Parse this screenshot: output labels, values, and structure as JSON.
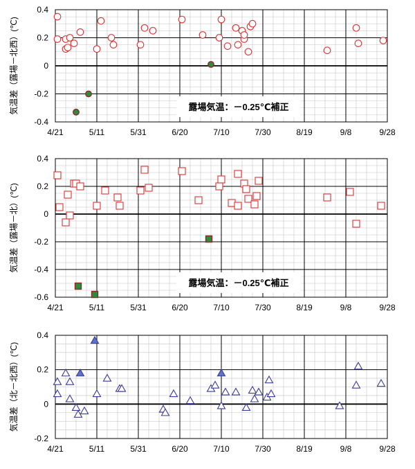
{
  "chart_data": [
    {
      "type": "scatter",
      "ylabel": "気温差（露場－北西）(℃)",
      "ylim": [
        -0.4,
        0.4
      ],
      "yticks": [
        -0.4,
        -0.2,
        0,
        0.2,
        0.4
      ],
      "xlim": [
        "4/21",
        "9/28"
      ],
      "xticks": [
        "4/21",
        "5/11",
        "5/31",
        "6/20",
        "7/10",
        "7/30",
        "8/19",
        "9/8",
        "9/28"
      ],
      "annotation": "露場気温：－0.25℃補正",
      "grid": true,
      "series": [
        {
          "marker": "circle-open",
          "color": "#e03030",
          "points": [
            [
              "4/22",
              0.35
            ],
            [
              "4/22",
              0.19
            ],
            [
              "4/26",
              0.12
            ],
            [
              "4/26",
              0.19
            ],
            [
              "4/27",
              0.13
            ],
            [
              "4/28",
              0.2
            ],
            [
              "4/30",
              0.16
            ],
            [
              "5/3",
              0.24
            ],
            [
              "5/11",
              0.12
            ],
            [
              "5/13",
              0.32
            ],
            [
              "5/18",
              0.2
            ],
            [
              "5/19",
              0.15
            ],
            [
              "6/1",
              0.15
            ],
            [
              "6/3",
              0.27
            ],
            [
              "6/7",
              0.25
            ],
            [
              "6/21",
              0.33
            ],
            [
              "7/1",
              0.22
            ],
            [
              "7/9",
              0.2
            ],
            [
              "7/10",
              0.33
            ],
            [
              "7/13",
              0.14
            ],
            [
              "7/17",
              0.27
            ],
            [
              "7/18",
              0.15
            ],
            [
              "7/20",
              0.25
            ],
            [
              "7/21",
              0.19
            ],
            [
              "7/21",
              0.22
            ],
            [
              "7/23",
              0.1
            ],
            [
              "7/24",
              0.28
            ],
            [
              "7/25",
              0.3
            ],
            [
              "8/30",
              0.11
            ],
            [
              "9/13",
              0.27
            ],
            [
              "9/14",
              0.16
            ],
            [
              "9/26",
              0.18
            ]
          ]
        },
        {
          "marker": "circle-filled",
          "color": "#2f8a3a",
          "edge": "#8a2a2a",
          "points": [
            [
              "5/1",
              -0.33
            ],
            [
              "5/7",
              -0.2
            ],
            [
              "7/5",
              0.01
            ]
          ]
        }
      ]
    },
    {
      "type": "scatter",
      "ylabel": "気温差（露場－北）(℃)",
      "ylim": [
        -0.6,
        0.4
      ],
      "yticks": [
        -0.6,
        -0.4,
        -0.2,
        0,
        0.2,
        0.4
      ],
      "xlim": [
        "4/21",
        "9/28"
      ],
      "xticks": [
        "4/21",
        "5/11",
        "5/31",
        "6/20",
        "7/10",
        "7/30",
        "8/19",
        "9/8",
        "9/28"
      ],
      "annotation": "露場気温：－0.25℃補正",
      "grid": true,
      "series": [
        {
          "marker": "square-open",
          "color": "#e03030",
          "points": [
            [
              "4/22",
              0.28
            ],
            [
              "4/23",
              0.05
            ],
            [
              "4/26",
              -0.06
            ],
            [
              "4/27",
              0.14
            ],
            [
              "4/28",
              -0.01
            ],
            [
              "4/30",
              0.22
            ],
            [
              "5/1",
              0.22
            ],
            [
              "5/3",
              0.2
            ],
            [
              "5/11",
              0.06
            ],
            [
              "5/15",
              0.17
            ],
            [
              "5/21",
              0.12
            ],
            [
              "5/22",
              0.06
            ],
            [
              "6/1",
              0.17
            ],
            [
              "6/3",
              0.32
            ],
            [
              "6/5",
              0.19
            ],
            [
              "6/21",
              0.31
            ],
            [
              "6/29",
              0.1
            ],
            [
              "7/9",
              0.2
            ],
            [
              "7/10",
              0.25
            ],
            [
              "7/15",
              0.08
            ],
            [
              "7/18",
              0.29
            ],
            [
              "7/18",
              0.06
            ],
            [
              "7/21",
              0.22
            ],
            [
              "7/22",
              0.18
            ],
            [
              "7/23",
              0.11
            ],
            [
              "7/26",
              0.07
            ],
            [
              "7/27",
              0.13
            ],
            [
              "7/28",
              0.24
            ],
            [
              "8/30",
              0.12
            ],
            [
              "9/10",
              0.16
            ],
            [
              "9/13",
              -0.07
            ],
            [
              "9/25",
              0.06
            ]
          ]
        },
        {
          "marker": "square-filled",
          "color": "#2f8a3a",
          "edge": "#8a2a2a",
          "points": [
            [
              "5/2",
              -0.52
            ],
            [
              "5/10",
              -0.58
            ],
            [
              "7/4",
              -0.18
            ]
          ]
        }
      ]
    },
    {
      "type": "scatter",
      "ylabel": "気温差（北－北西）(℃)",
      "ylim": [
        -0.2,
        0.4
      ],
      "yticks": [
        -0.2,
        0,
        0.2,
        0.4
      ],
      "xlim": [
        "4/21",
        "9/28"
      ],
      "xticks": [
        "4/21",
        "5/11",
        "5/31",
        "6/20",
        "7/10",
        "7/30",
        "8/19",
        "9/8",
        "9/28"
      ],
      "annotation": "",
      "grid": true,
      "series": [
        {
          "marker": "triangle-open",
          "color": "#3a3a9a",
          "points": [
            [
              "4/22",
              0.06
            ],
            [
              "4/22",
              0.13
            ],
            [
              "4/26",
              0.18
            ],
            [
              "4/28",
              0.13
            ],
            [
              "4/28",
              0.03
            ],
            [
              "5/1",
              -0.02
            ],
            [
              "5/2",
              -0.06
            ],
            [
              "5/5",
              -0.04
            ],
            [
              "5/11",
              0.06
            ],
            [
              "5/16",
              0.15
            ],
            [
              "5/22",
              0.09
            ],
            [
              "5/23",
              0.09
            ],
            [
              "6/12",
              -0.03
            ],
            [
              "6/13",
              -0.05
            ],
            [
              "6/17",
              0.06
            ],
            [
              "6/25",
              0.02
            ],
            [
              "7/5",
              0.09
            ],
            [
              "7/7",
              0.11
            ],
            [
              "7/10",
              -0.01
            ],
            [
              "7/12",
              0.07
            ],
            [
              "7/17",
              0.07
            ],
            [
              "7/22",
              -0.02
            ],
            [
              "7/25",
              0.08
            ],
            [
              "7/26",
              0.03
            ],
            [
              "7/28",
              0.07
            ],
            [
              "8/1",
              0.04
            ],
            [
              "8/2",
              0.14
            ],
            [
              "8/3",
              0.06
            ],
            [
              "9/5",
              -0.01
            ],
            [
              "9/13",
              0.11
            ],
            [
              "9/14",
              0.22
            ],
            [
              "9/25",
              0.12
            ]
          ]
        },
        {
          "marker": "triangle-filled",
          "color": "#5b74c8",
          "edge": "#3a3a9a",
          "points": [
            [
              "5/3",
              0.18
            ],
            [
              "5/10",
              0.37
            ],
            [
              "7/10",
              0.18
            ]
          ]
        }
      ]
    }
  ]
}
